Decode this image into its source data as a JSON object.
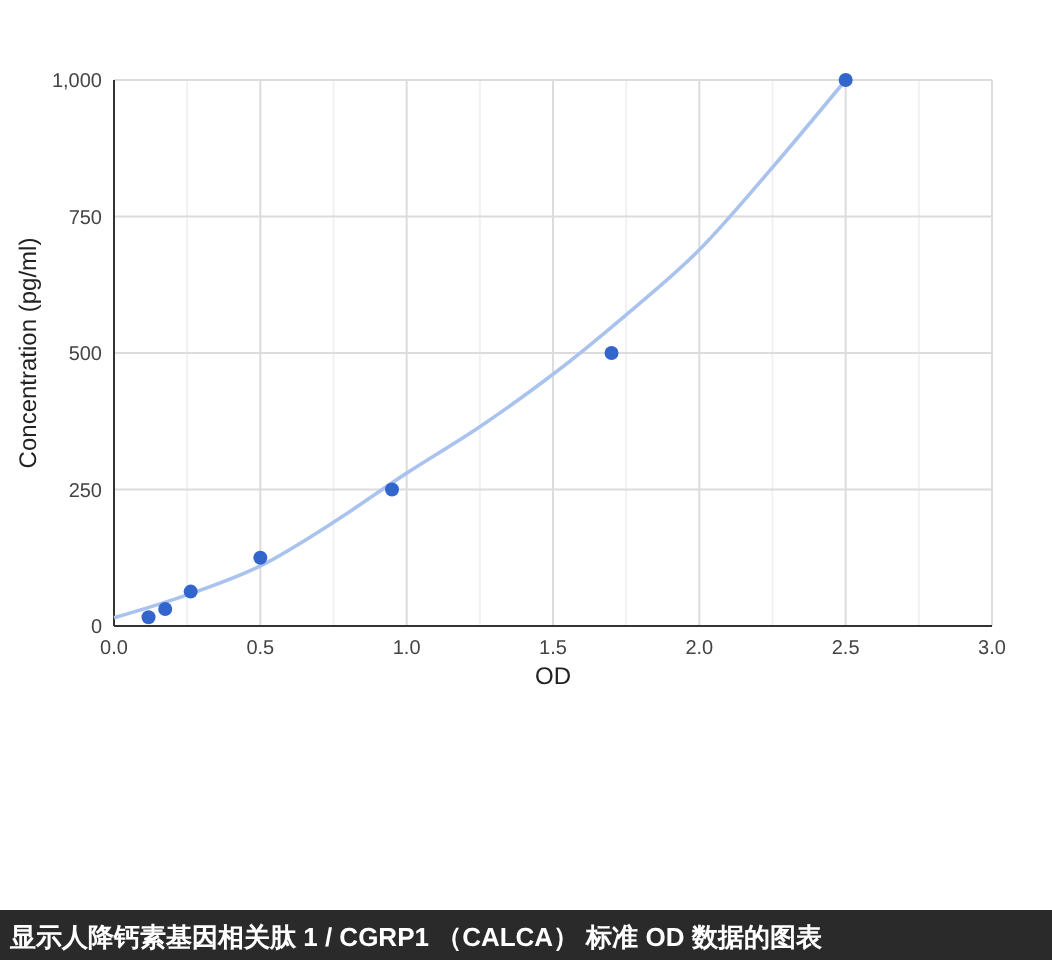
{
  "chart_data": {
    "type": "scatter",
    "xlabel": "OD",
    "ylabel": "Concentration (pg/ml)",
    "annotations": [
      "显示人降钙素基因相关肽 1 / CGRP1 （CALCA） 标准 OD 数据的图表"
    ],
    "series": [
      {
        "type": "line",
        "color": "#a9c3ee",
        "x": [
          0,
          0.25,
          0.5,
          0.75,
          1.0,
          1.25,
          1.5,
          1.75,
          2.0,
          2.25,
          2.5
        ],
        "values": [
          15,
          57,
          110,
          190,
          280,
          365,
          461,
          570,
          689,
          840,
          1000
        ],
        "marker": "none"
      },
      {
        "color": "#3366cc",
        "x": [
          0.118,
          0.175,
          0.262,
          0.5,
          0.95,
          1.7,
          2.5
        ],
        "values": [
          16,
          31,
          63,
          125,
          250,
          500,
          1000
        ],
        "marker": "circle"
      }
    ],
    "xlim": [
      0,
      3
    ],
    "xticks": [
      {
        "value": 0,
        "label": "0.0"
      },
      {
        "value": 0.5,
        "label": "0.5"
      },
      {
        "value": 1,
        "label": "1.0"
      },
      {
        "value": 1.5,
        "label": "1.5"
      },
      {
        "value": 2,
        "label": "2.0"
      },
      {
        "value": 2.5,
        "label": "2.5"
      },
      {
        "value": 3,
        "label": "3.0"
      }
    ],
    "ylim": [
      0,
      1000
    ],
    "yticks": [
      0,
      250,
      500,
      750,
      {
        "value": 1000,
        "label": "1,000"
      }
    ],
    "grid": true
  }
}
